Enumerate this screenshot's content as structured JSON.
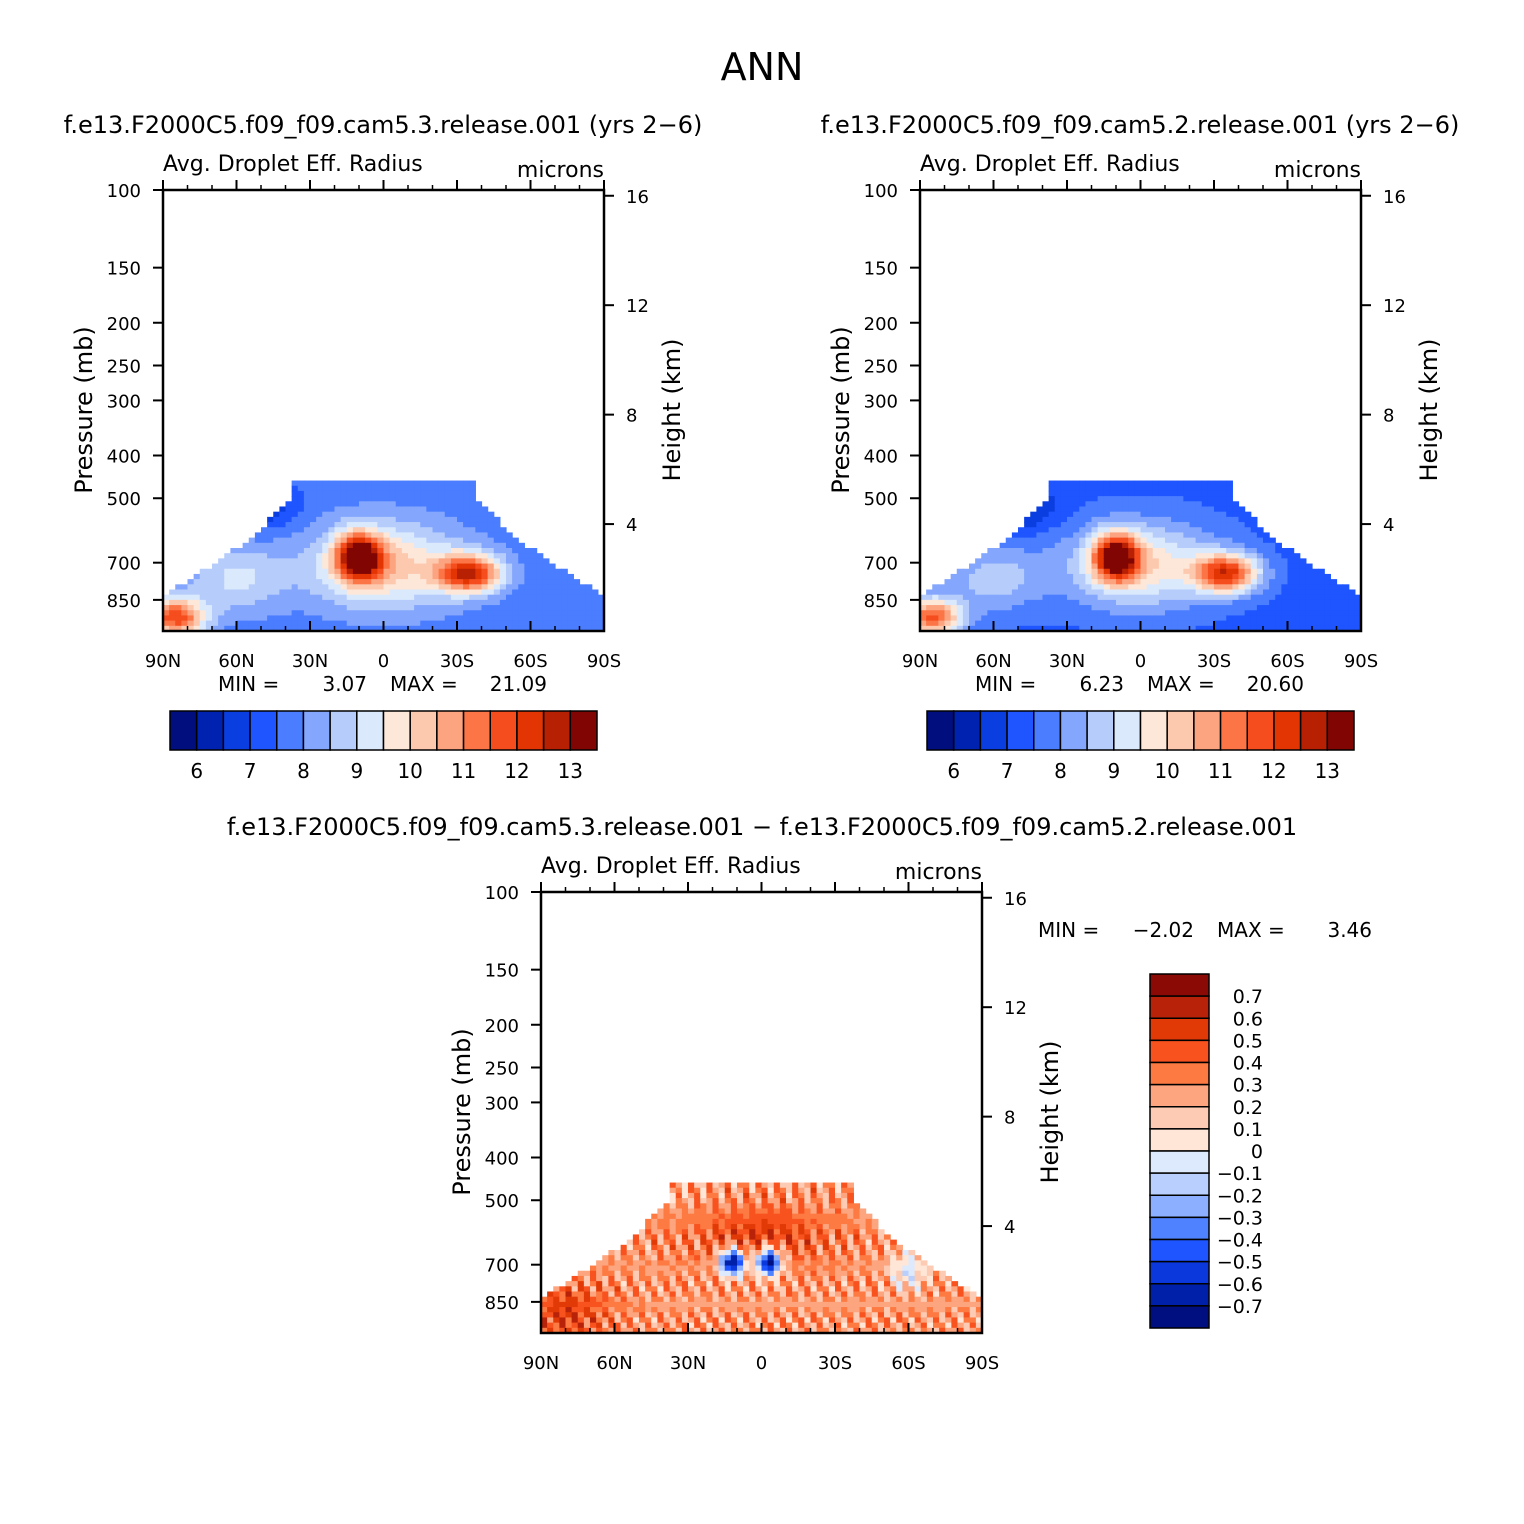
{
  "figure": {
    "title": "ANN"
  },
  "colors": {
    "cb_main": [
      "#000e7e",
      "#0022b0",
      "#0b3ee0",
      "#1e55ff",
      "#4a7dff",
      "#84a6fc",
      "#b6cdfb",
      "#dbe9fd",
      "#fde7d8",
      "#fdc9ae",
      "#fca380",
      "#fc7547",
      "#f54d1e",
      "#e33504",
      "#b82004",
      "#810603"
    ],
    "cb_diff": [
      "#8b0a05",
      "#b82208",
      "#e23a06",
      "#f8531f",
      "#fd7a43",
      "#fca57e",
      "#fdcbb3",
      "#ffe6d6",
      "#dde9fd",
      "#b9cffd",
      "#8cb0ff",
      "#4f82ff",
      "#1f55ff",
      "#0a38dd",
      "#0020aa",
      "#000f80"
    ]
  },
  "chart_data": [
    {
      "type": "heatmap",
      "panel": "top-left",
      "case_title": "f.e13.F2000C5.f09_f09.cam5.3.release.001  (yrs 2−6)",
      "subtitle_left": "Avg. Droplet Eff. Radius",
      "subtitle_right": "microns",
      "ylabel": "Pressure (mb)",
      "y2label": "Height (km)",
      "xticks": [
        "90N",
        "60N",
        "30N",
        "0",
        "30S",
        "60S",
        "90S"
      ],
      "yticks": [
        "100",
        "150",
        "200",
        "250",
        "300",
        "400",
        "500",
        "700",
        "850"
      ],
      "y2ticks": [
        "16",
        "12",
        "8",
        "4"
      ],
      "min_label": "MIN =",
      "min_value": "3.07",
      "max_label": "MAX =",
      "max_value": "21.09",
      "colorbar_labels": [
        "6",
        "7",
        "8",
        "9",
        "10",
        "11",
        "12",
        "13"
      ],
      "levels": [
        5.5,
        6,
        6.5,
        7,
        7.5,
        8,
        8.5,
        9,
        9.5,
        10,
        10.5,
        11,
        11.5,
        12,
        12.5,
        13
      ],
      "xlim": [
        -90,
        90
      ],
      "ylim_mb": [
        100,
        1000
      ]
    },
    {
      "type": "heatmap",
      "panel": "top-right",
      "case_title": "f.e13.F2000C5.f09_f09.cam5.2.release.001  (yrs 2−6)",
      "subtitle_left": "Avg. Droplet Eff. Radius",
      "subtitle_right": "microns",
      "ylabel": "Pressure (mb)",
      "y2label": "Height (km)",
      "xticks": [
        "90N",
        "60N",
        "30N",
        "0",
        "30S",
        "60S",
        "90S"
      ],
      "yticks": [
        "100",
        "150",
        "200",
        "250",
        "300",
        "400",
        "500",
        "700",
        "850"
      ],
      "y2ticks": [
        "16",
        "12",
        "8",
        "4"
      ],
      "min_label": "MIN =",
      "min_value": "6.23",
      "max_label": "MAX =",
      "max_value": "20.60",
      "colorbar_labels": [
        "6",
        "7",
        "8",
        "9",
        "10",
        "11",
        "12",
        "13"
      ],
      "levels": [
        5.5,
        6,
        6.5,
        7,
        7.5,
        8,
        8.5,
        9,
        9.5,
        10,
        10.5,
        11,
        11.5,
        12,
        12.5,
        13
      ],
      "xlim": [
        -90,
        90
      ],
      "ylim_mb": [
        100,
        1000
      ]
    },
    {
      "type": "heatmap",
      "panel": "bottom",
      "case_title": "f.e13.F2000C5.f09_f09.cam5.3.release.001  −  f.e13.F2000C5.f09_f09.cam5.2.release.001",
      "subtitle_left": "Avg. Droplet Eff. Radius",
      "subtitle_right": "microns",
      "ylabel": "Pressure (mb)",
      "y2label": "Height (km)",
      "xticks": [
        "90N",
        "60N",
        "30N",
        "0",
        "30S",
        "60S",
        "90S"
      ],
      "yticks": [
        "100",
        "150",
        "200",
        "250",
        "300",
        "400",
        "500",
        "700",
        "850"
      ],
      "y2ticks": [
        "16",
        "12",
        "8",
        "4"
      ],
      "min_label": "MIN =",
      "min_value": "−2.02",
      "max_label": "MAX =",
      "max_value": "3.46",
      "colorbar_labels": [
        "0.7",
        "0.6",
        "0.5",
        "0.4",
        "0.3",
        "0.2",
        "0.1",
        "0",
        "−0.1",
        "−0.2",
        "−0.3",
        "−0.4",
        "−0.5",
        "−0.6",
        "−0.7"
      ],
      "levels": [
        -0.7,
        -0.6,
        -0.5,
        -0.4,
        -0.3,
        -0.2,
        -0.1,
        0,
        0.1,
        0.2,
        0.3,
        0.4,
        0.5,
        0.6,
        0.7
      ],
      "xlim": [
        -90,
        90
      ],
      "ylim_mb": [
        100,
        1000
      ]
    }
  ]
}
